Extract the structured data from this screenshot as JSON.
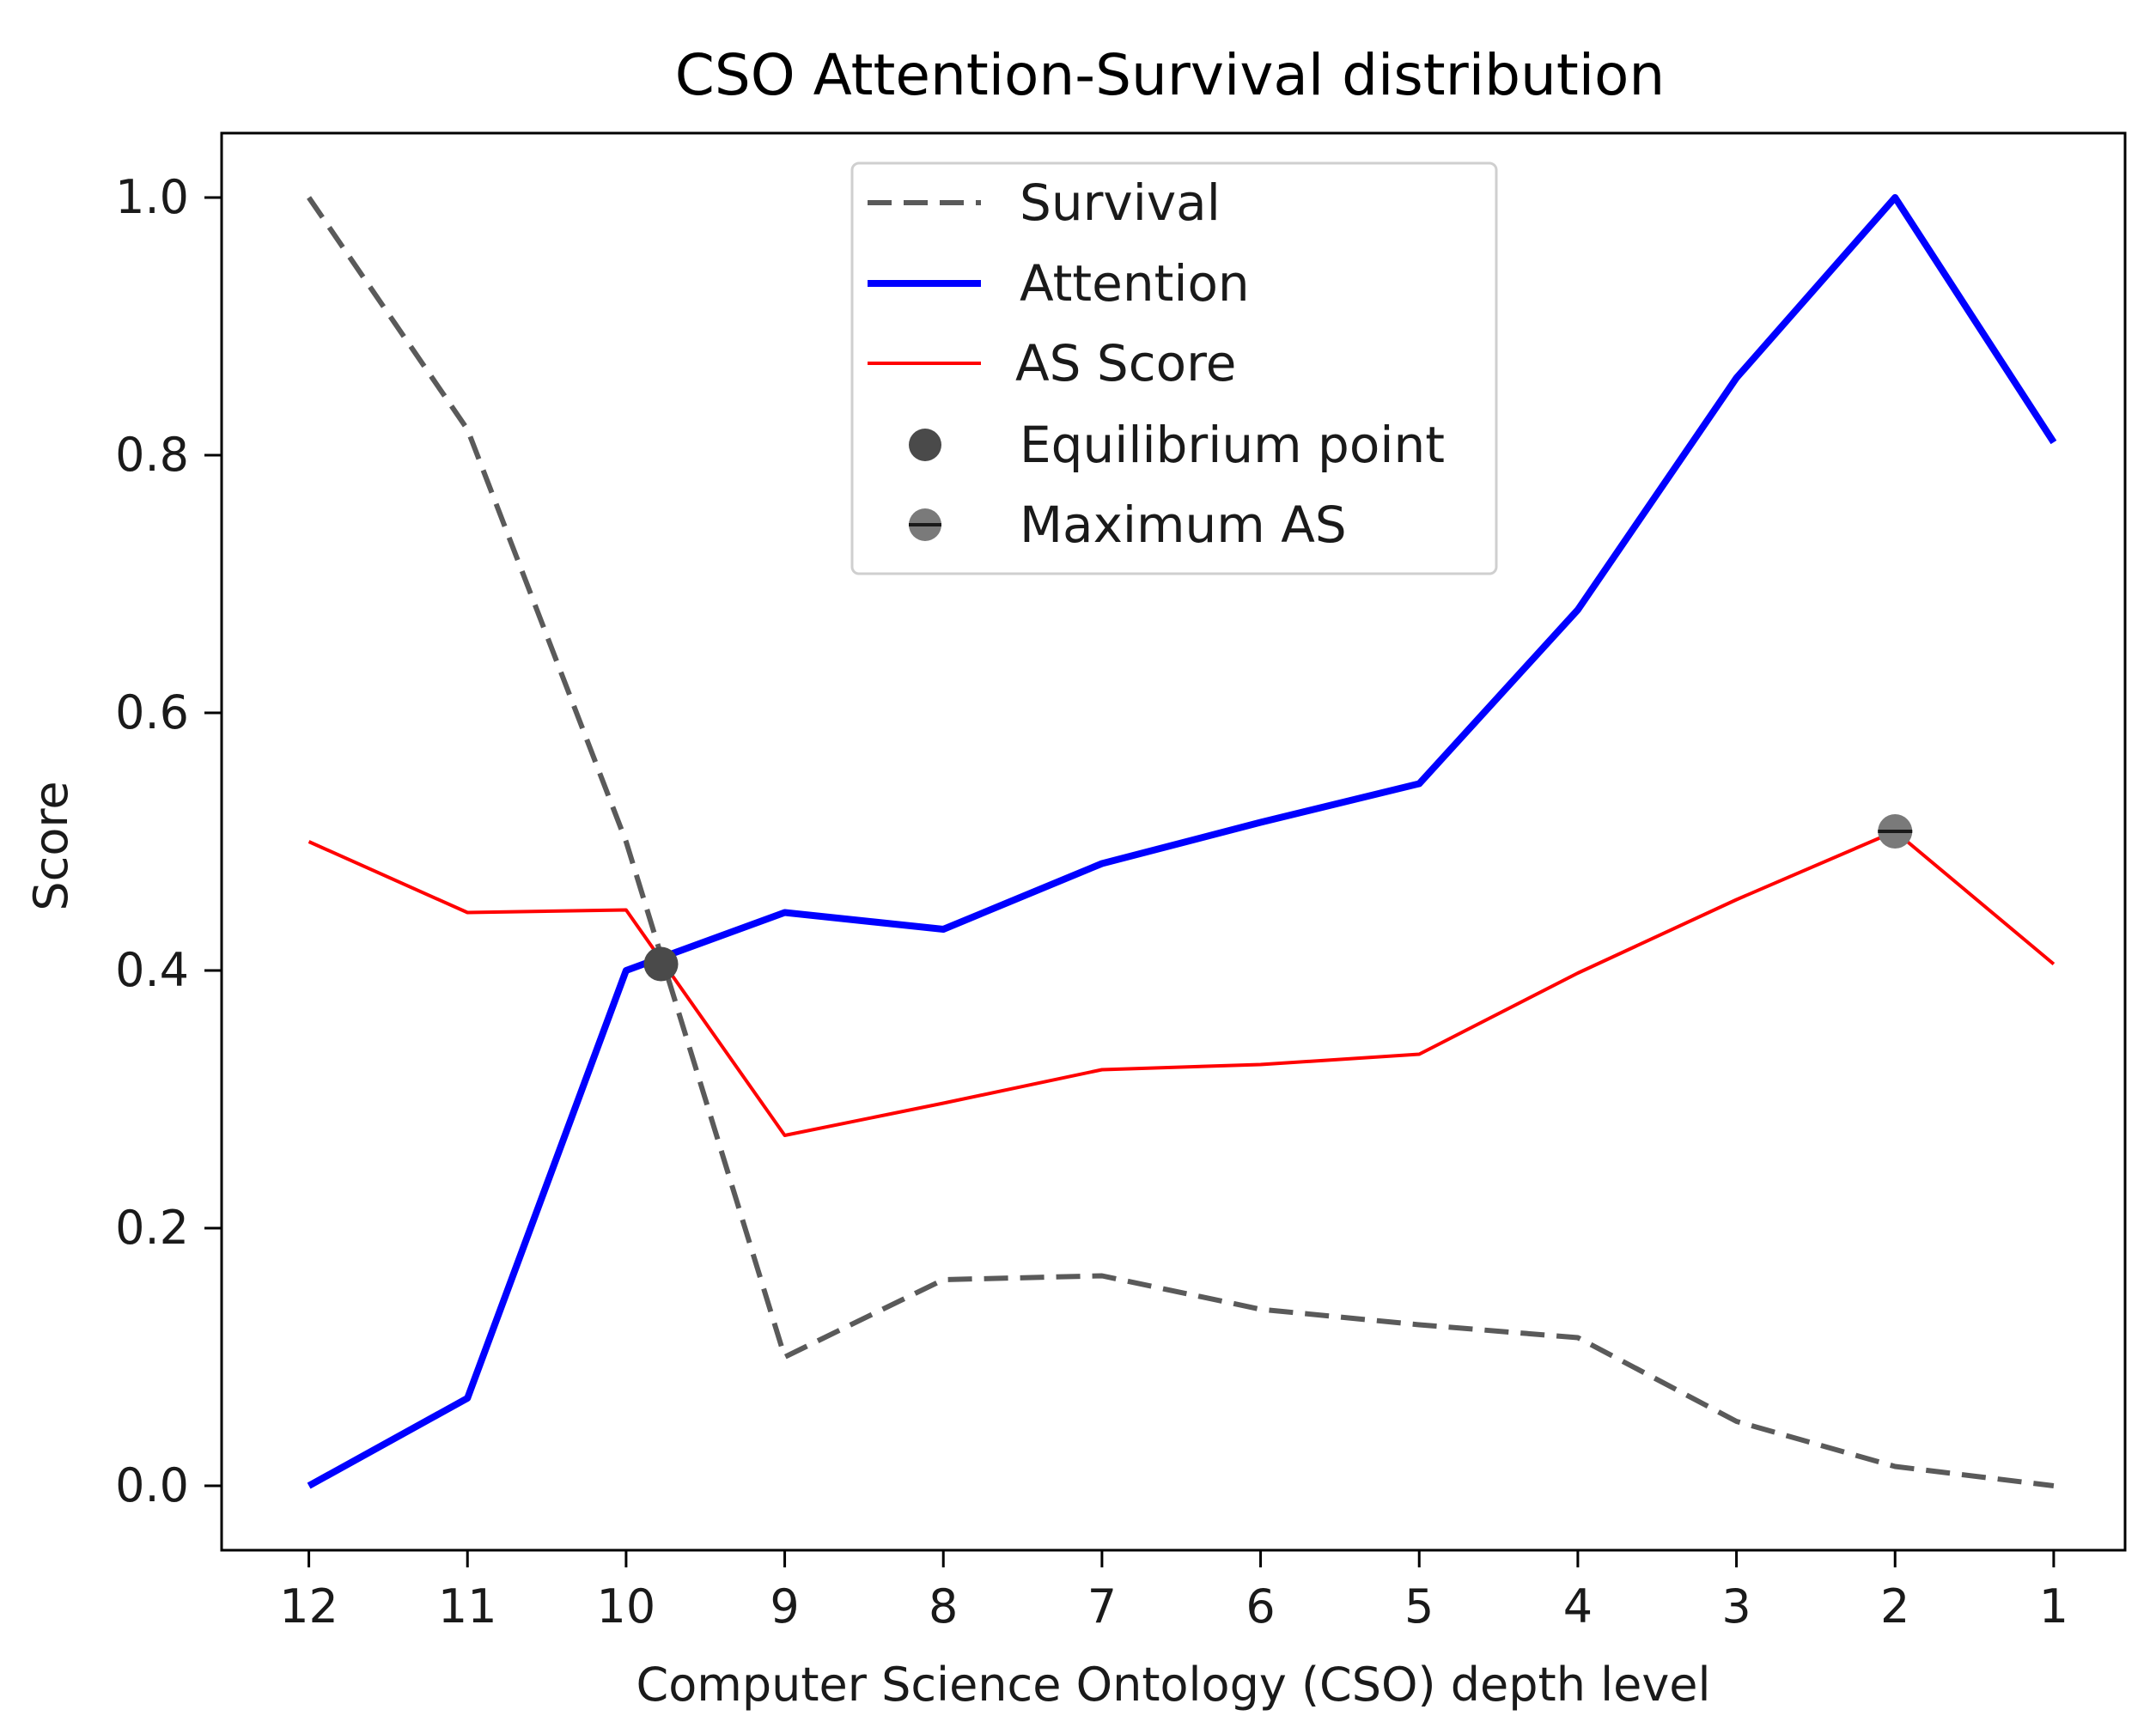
{
  "chart_data": {
    "type": "line",
    "title": "CSO Attention-Survival distribution",
    "xlabel": "Computer Science Ontology (CSO) depth level",
    "ylabel": "Score",
    "x": [
      12,
      11,
      10,
      9,
      8,
      7,
      6,
      5,
      4,
      3,
      2,
      1
    ],
    "x_tick_labels": [
      "12",
      "11",
      "10",
      "9",
      "8",
      "7",
      "6",
      "5",
      "4",
      "3",
      "2",
      "1"
    ],
    "x_inverted": true,
    "xlim": [
      12.55,
      0.55
    ],
    "y_ticks": [
      0.0,
      0.2,
      0.4,
      0.6,
      0.8,
      1.0
    ],
    "y_tick_labels": [
      "0.0",
      "0.2",
      "0.4",
      "0.6",
      "0.8",
      "1.0"
    ],
    "ylim": [
      -0.05,
      1.05
    ],
    "grid": false,
    "legend_position": "top-center",
    "series": [
      {
        "name": "Survival",
        "style": "dashed",
        "color": "#5a5a5a",
        "values": [
          1.0,
          0.82,
          0.5,
          0.1,
          0.16,
          0.163,
          0.137,
          0.125,
          0.115,
          0.05,
          0.015,
          0.0
        ]
      },
      {
        "name": "Attention",
        "style": "solid-thick",
        "color": "#0000ff",
        "values": [
          0.0,
          0.068,
          0.4,
          0.445,
          0.432,
          0.483,
          0.515,
          0.545,
          0.68,
          0.86,
          1.0,
          0.81
        ]
      },
      {
        "name": "AS Score",
        "style": "solid",
        "color": "#ff0000",
        "values": [
          0.5,
          0.445,
          0.447,
          0.272,
          0.297,
          0.323,
          0.327,
          0.335,
          0.398,
          0.455,
          0.508,
          0.405
        ]
      }
    ],
    "markers": [
      {
        "name": "Equilibrium point",
        "x": 9.78,
        "y": 0.405,
        "color": "#4a4a4a"
      },
      {
        "name": "Maximum AS",
        "x": 2,
        "y": 0.508,
        "color": "#7a7a7a"
      }
    ]
  }
}
